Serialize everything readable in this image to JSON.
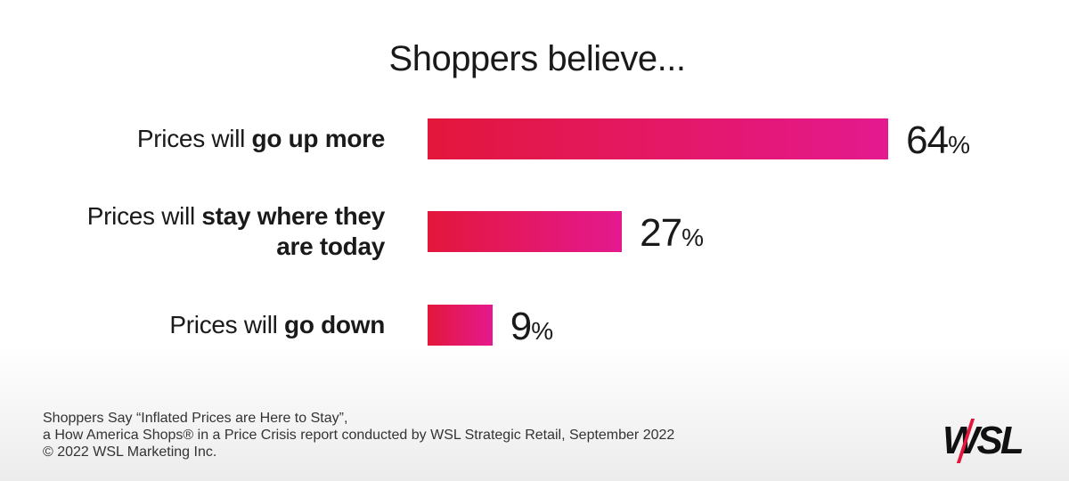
{
  "chart_data": {
    "type": "bar",
    "orientation": "horizontal",
    "title": "Shoppers believe...",
    "categories": [
      {
        "regular": "Prices will",
        "bold": "go up more"
      },
      {
        "regular": "Prices will",
        "bold": "stay where they are today"
      },
      {
        "regular": "Prices will",
        "bold": "go down"
      }
    ],
    "values": [
      64,
      27,
      9
    ],
    "value_labels": [
      "64%",
      "27%",
      "9%"
    ],
    "color": [
      "#e3173b",
      "#e4198f"
    ]
  },
  "footer": {
    "source": [
      "Shoppers Say “Inflated Prices are Here to Stay”,",
      "a How America Shops® in a Price Crisis report conducted by WSL Strategic Retail, September 2022",
      "© 2022 WSL Marketing Inc."
    ],
    "logo": "WSL"
  }
}
